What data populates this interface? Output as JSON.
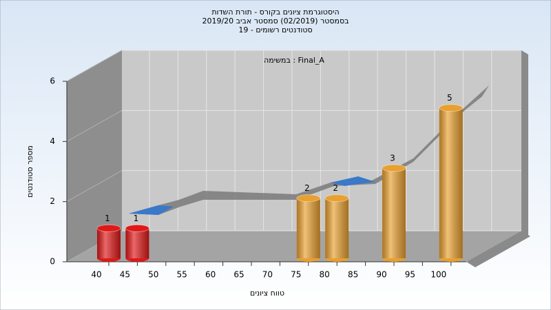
{
  "chart_data": {
    "type": "bar",
    "title": [
      "היסטוגרמת ציונים בקורס - תורת השדות",
      "בסמסטר (02/2019) סמסטר אביב 2019/20",
      "סטודנטים רשומים - 19"
    ],
    "annotation": "במשימה : Final_A",
    "x_label": "טווח ציונים",
    "y_label": "מספר סטודנטים",
    "categories": [
      "40",
      "45",
      "50",
      "55",
      "60",
      "65",
      "70",
      "75",
      "80",
      "85",
      "90",
      "95",
      "100"
    ],
    "values": [
      1,
      1,
      0,
      0,
      0,
      0,
      0,
      2,
      2,
      0,
      3,
      0,
      5
    ],
    "colors": [
      "#e01818",
      "#e01818",
      "#e8a030",
      "#e8a030",
      "#e8a030",
      "#e8a030",
      "#e8a030",
      "#e8a030",
      "#e8a030",
      "#e8a030",
      "#e8a030",
      "#e8a030",
      "#e8a030"
    ],
    "ylim": [
      0,
      6
    ],
    "yticks": [
      0,
      2,
      4,
      6
    ],
    "grid": true
  }
}
